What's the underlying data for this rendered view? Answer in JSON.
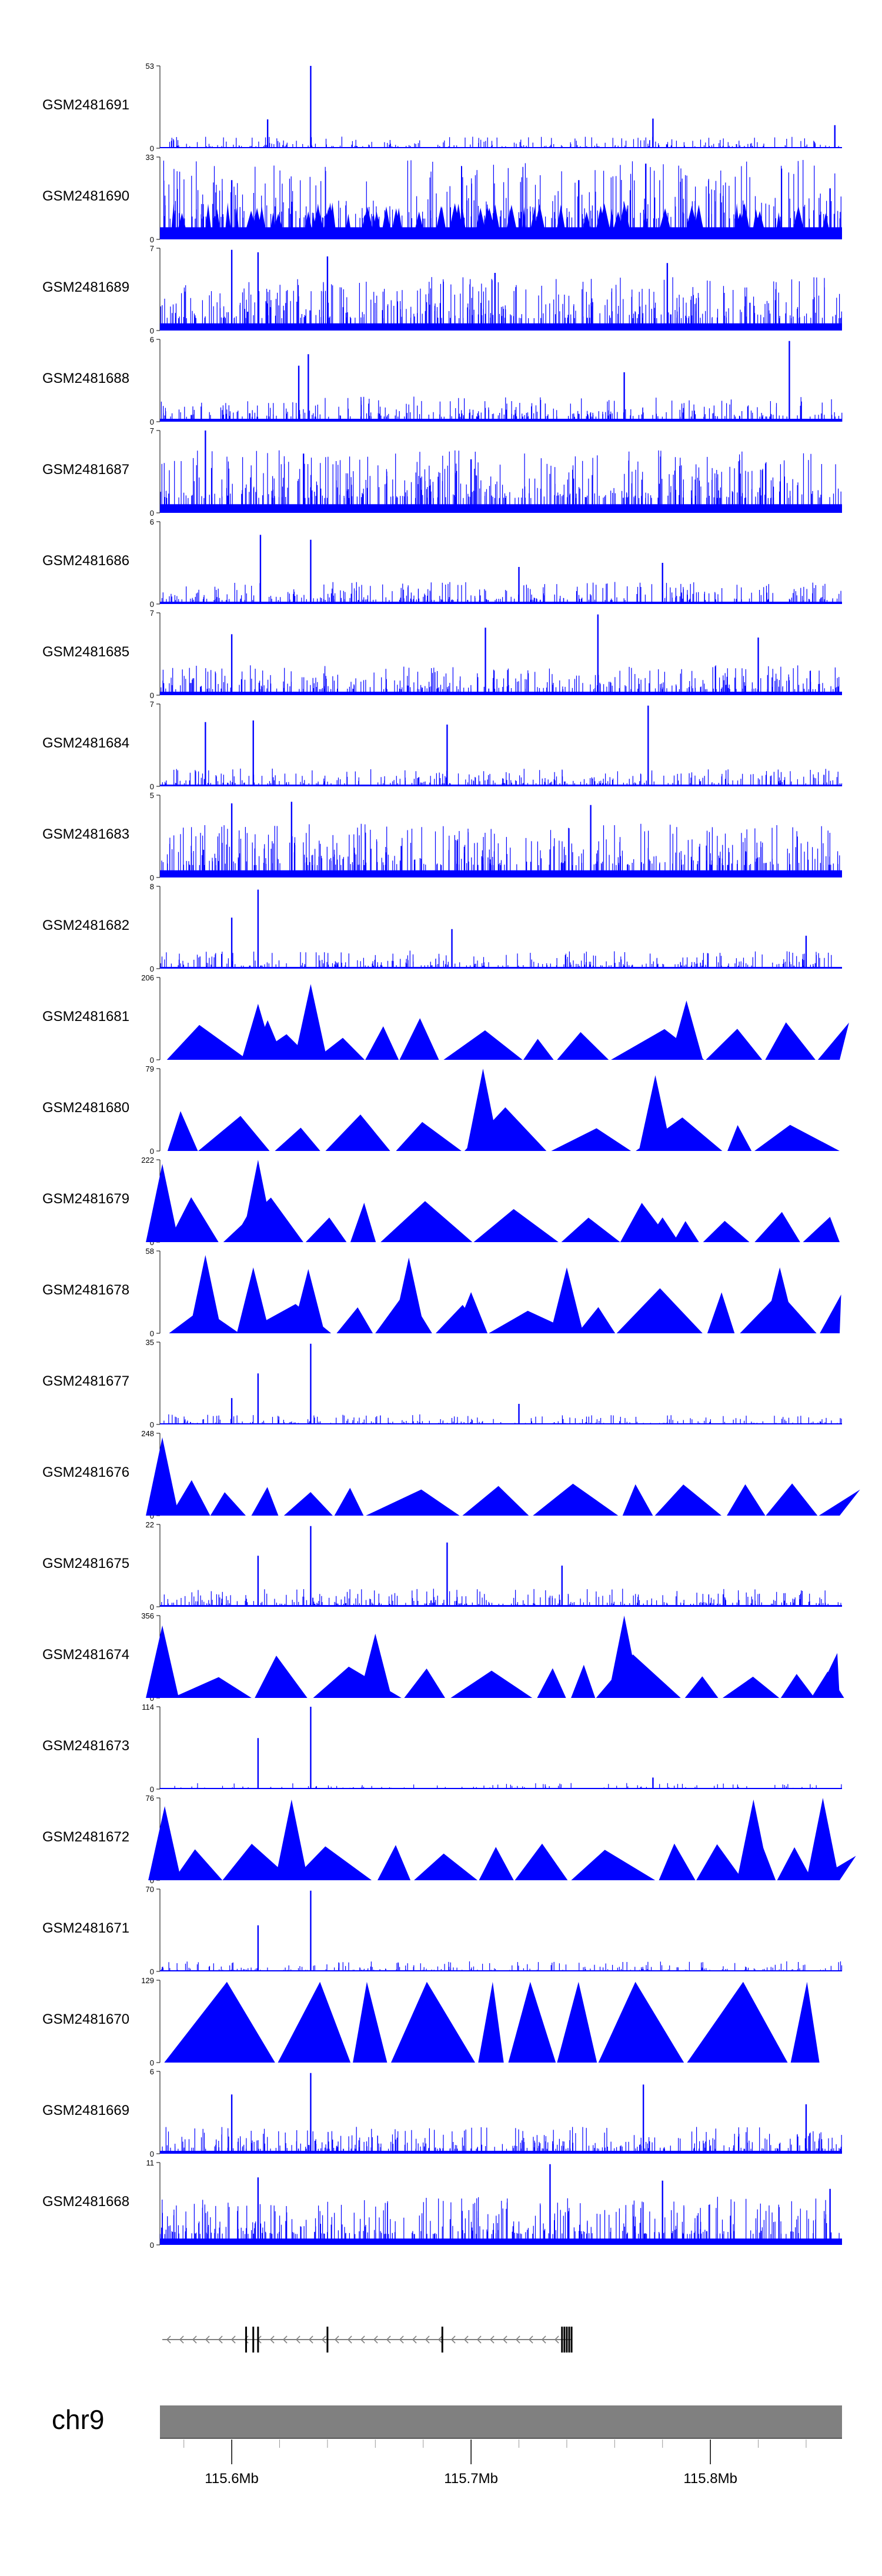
{
  "chart_data": {
    "type": "area",
    "description_note": "Genome browser coverage tracks",
    "chromosome": "chr9",
    "x_range_mb": [
      115.57,
      115.855
    ],
    "axis_ticks_mb": [
      115.6,
      115.7,
      115.8
    ],
    "axis_tick_labels": [
      "115.6Mb",
      "115.7Mb",
      "115.8Mb"
    ],
    "colors": {
      "signal": "#0000ff",
      "ideogram": "#808080",
      "gene": "#808080",
      "text": "#000000"
    },
    "tracks": [
      {
        "name": "GSM2481691",
        "ymax": 53,
        "ymin": 0,
        "style": "dense",
        "baseline": 0.04,
        "density": 0.35,
        "peaks": [
          [
            115.633,
            1.0
          ],
          [
            115.615,
            0.35
          ],
          [
            115.776,
            0.36
          ],
          [
            115.852,
            0.28
          ]
        ]
      },
      {
        "name": "GSM2481690",
        "ymax": 33,
        "ymin": 0,
        "style": "spiky",
        "baseline": 0.42,
        "density": 0.7,
        "peaks": [
          [
            115.773,
            0.92
          ],
          [
            115.6,
            0.72
          ],
          [
            115.745,
            0.72
          ],
          [
            115.85,
            0.62
          ]
        ]
      },
      {
        "name": "GSM2481689",
        "ymax": 7,
        "ymin": 0,
        "style": "dense",
        "baseline": 0.25,
        "density": 0.85,
        "peaks": [
          [
            115.6,
            0.98
          ],
          [
            115.611,
            0.95
          ],
          [
            115.64,
            0.9
          ],
          [
            115.782,
            0.82
          ],
          [
            115.71,
            0.7
          ]
        ]
      },
      {
        "name": "GSM2481688",
        "ymax": 6,
        "ymin": 0,
        "style": "dense",
        "baseline": 0.1,
        "density": 0.6,
        "peaks": [
          [
            115.833,
            0.98
          ],
          [
            115.632,
            0.82
          ],
          [
            115.628,
            0.68
          ],
          [
            115.764,
            0.6
          ]
        ]
      },
      {
        "name": "GSM2481687",
        "ymax": 7,
        "ymin": 0,
        "style": "dense",
        "baseline": 0.3,
        "density": 0.9,
        "peaks": [
          [
            115.589,
            1.0
          ],
          [
            115.63,
            0.72
          ],
          [
            115.7,
            0.65
          ]
        ]
      },
      {
        "name": "GSM2481686",
        "ymax": 6,
        "ymin": 0,
        "style": "dense",
        "baseline": 0.08,
        "density": 0.6,
        "peaks": [
          [
            115.612,
            0.84
          ],
          [
            115.633,
            0.78
          ],
          [
            115.72,
            0.45
          ],
          [
            115.78,
            0.5
          ]
        ]
      },
      {
        "name": "GSM2481685",
        "ymax": 7,
        "ymin": 0,
        "style": "dense",
        "baseline": 0.12,
        "density": 0.7,
        "peaks": [
          [
            115.753,
            0.98
          ],
          [
            115.706,
            0.82
          ],
          [
            115.6,
            0.74
          ],
          [
            115.82,
            0.7
          ]
        ]
      },
      {
        "name": "GSM2481684",
        "ymax": 7,
        "ymin": 0,
        "style": "dense",
        "baseline": 0.06,
        "density": 0.55,
        "peaks": [
          [
            115.774,
            0.98
          ],
          [
            115.609,
            0.8
          ],
          [
            115.589,
            0.78
          ],
          [
            115.69,
            0.75
          ]
        ]
      },
      {
        "name": "GSM2481683",
        "ymax": 5,
        "ymin": 0,
        "style": "dense",
        "baseline": 0.25,
        "density": 0.85,
        "peaks": [
          [
            115.6,
            0.9
          ],
          [
            115.625,
            0.92
          ],
          [
            115.75,
            0.88
          ]
        ]
      },
      {
        "name": "GSM2481682",
        "ymax": 8,
        "ymin": 0,
        "style": "dense",
        "baseline": 0.06,
        "density": 0.55,
        "peaks": [
          [
            115.611,
            0.96
          ],
          [
            115.6,
            0.62
          ],
          [
            115.692,
            0.48
          ],
          [
            115.84,
            0.4
          ]
        ]
      },
      {
        "name": "GSM2481681",
        "ymax": 206,
        "ymin": 0,
        "style": "triangles",
        "peaks": [
          [
            115.611,
            0.68
          ],
          [
            115.615,
            0.48
          ],
          [
            115.633,
            0.92
          ],
          [
            115.79,
            0.72
          ]
        ]
      },
      {
        "name": "GSM2481680",
        "ymax": 79,
        "ymin": 0,
        "style": "triangles",
        "peaks": [
          [
            115.705,
            1.0
          ],
          [
            115.777,
            0.92
          ]
        ]
      },
      {
        "name": "GSM2481679",
        "ymax": 222,
        "ymin": 0,
        "style": "triangles",
        "peaks": [
          [
            115.571,
            0.95
          ],
          [
            115.611,
            1.0
          ],
          [
            115.607,
            0.35
          ],
          [
            115.722,
            0.26
          ],
          [
            115.78,
            0.3
          ]
        ]
      },
      {
        "name": "GSM2481678",
        "ymax": 58,
        "ymin": 0,
        "style": "triangles",
        "peaks": [
          [
            115.589,
            0.95
          ],
          [
            115.609,
            0.8
          ],
          [
            115.632,
            0.78
          ],
          [
            115.674,
            0.92
          ],
          [
            115.7,
            0.5
          ],
          [
            115.74,
            0.8
          ],
          [
            115.829,
            0.8
          ]
        ]
      },
      {
        "name": "GSM2481677",
        "ymax": 35,
        "ymin": 0,
        "style": "dense",
        "baseline": 0.03,
        "density": 0.35,
        "peaks": [
          [
            115.633,
            0.98
          ],
          [
            115.611,
            0.62
          ],
          [
            115.6,
            0.32
          ],
          [
            115.72,
            0.25
          ]
        ]
      },
      {
        "name": "GSM2481676",
        "ymax": 248,
        "ymin": 0,
        "style": "triangles",
        "peaks": [
          [
            115.571,
            0.95
          ]
        ]
      },
      {
        "name": "GSM2481675",
        "ymax": 22,
        "ymin": 0,
        "style": "dense",
        "baseline": 0.06,
        "density": 0.55,
        "peaks": [
          [
            115.633,
            0.98
          ],
          [
            115.69,
            0.78
          ],
          [
            115.611,
            0.62
          ],
          [
            115.738,
            0.5
          ]
        ]
      },
      {
        "name": "GSM2481674",
        "ymax": 356,
        "ymin": 0,
        "style": "triangles",
        "peaks": [
          [
            115.571,
            0.88
          ],
          [
            115.66,
            0.78
          ],
          [
            115.764,
            1.0
          ],
          [
            115.849,
            0.32
          ]
        ]
      },
      {
        "name": "GSM2481673",
        "ymax": 114,
        "ymin": 0,
        "style": "dense",
        "baseline": 0.01,
        "density": 0.3,
        "peaks": [
          [
            115.633,
            1.0
          ],
          [
            115.611,
            0.62
          ],
          [
            115.776,
            0.14
          ]
        ]
      },
      {
        "name": "GSM2481672",
        "ymax": 76,
        "ymin": 0,
        "style": "triangles",
        "peaks": [
          [
            115.625,
            0.98
          ],
          [
            115.572,
            0.9
          ],
          [
            115.818,
            0.98
          ],
          [
            115.847,
            1.0
          ]
        ]
      },
      {
        "name": "GSM2481671",
        "ymax": 70,
        "ymin": 0,
        "style": "dense",
        "baseline": 0.03,
        "density": 0.35,
        "peaks": [
          [
            115.633,
            0.98
          ],
          [
            115.611,
            0.56
          ]
        ]
      },
      {
        "name": "GSM2481670",
        "ymax": 129,
        "ymin": 0,
        "style": "triangles",
        "peaks": []
      },
      {
        "name": "GSM2481669",
        "ymax": 6,
        "ymin": 0,
        "style": "dense",
        "baseline": 0.1,
        "density": 0.7,
        "peaks": [
          [
            115.633,
            0.98
          ],
          [
            115.772,
            0.84
          ],
          [
            115.6,
            0.72
          ],
          [
            115.84,
            0.6
          ]
        ]
      },
      {
        "name": "GSM2481668",
        "ymax": 11,
        "ymin": 0,
        "style": "dense",
        "baseline": 0.22,
        "density": 0.8,
        "peaks": [
          [
            115.733,
            0.98
          ],
          [
            115.611,
            0.82
          ],
          [
            115.78,
            0.78
          ],
          [
            115.85,
            0.68
          ]
        ]
      }
    ],
    "gene": {
      "strand": "-",
      "start_mb": 115.571,
      "end_mb": 115.742,
      "exons_mb": [
        115.606,
        115.609,
        115.611,
        115.64,
        115.688,
        115.738,
        115.739,
        115.74,
        115.741,
        115.742
      ]
    },
    "chevron_icon": "chevron-left-icon"
  }
}
